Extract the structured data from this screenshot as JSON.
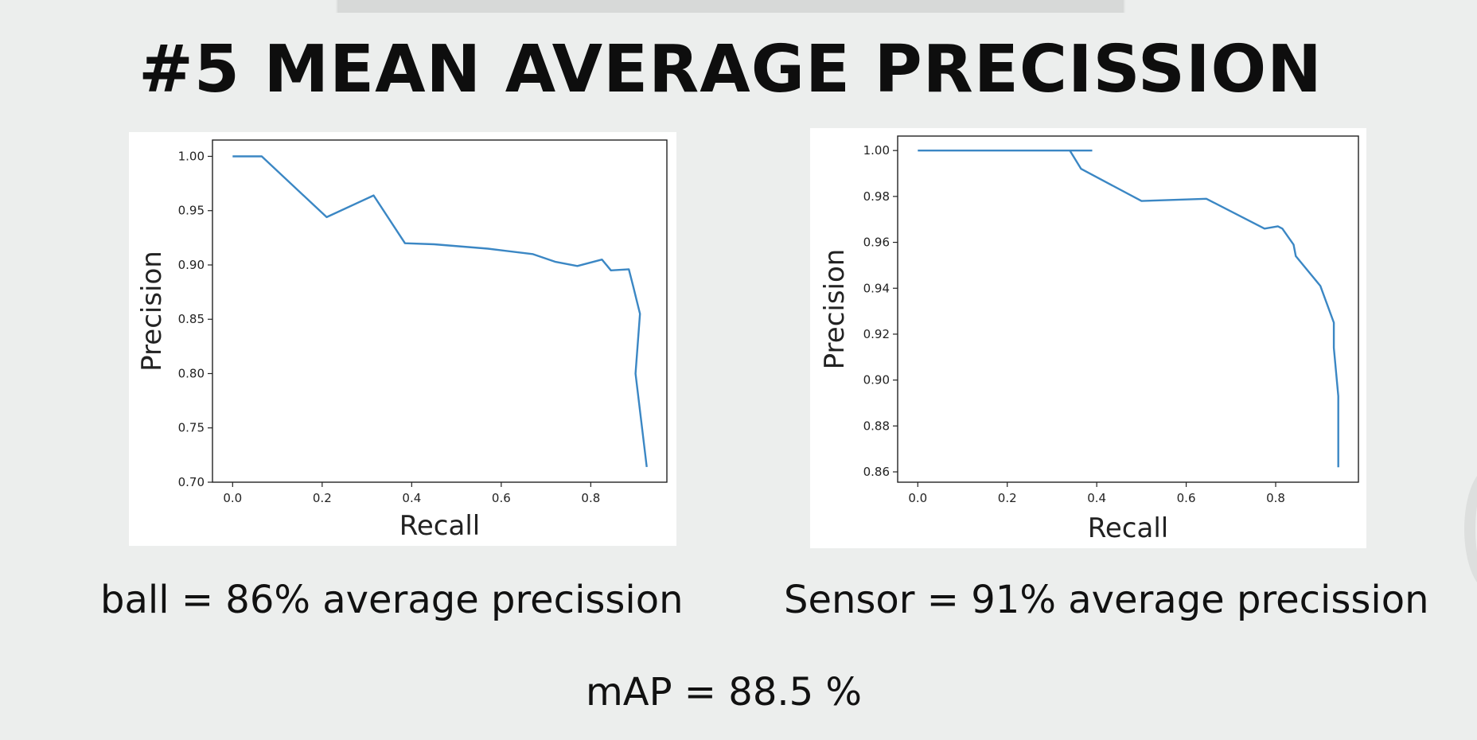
{
  "slide": {
    "title": "#5 MEAN AVERAGE PRECISSION",
    "caption_left": "ball = 86% average precission",
    "caption_right": "Sensor = 91% average precission",
    "caption_map": "mAP = 88.5 %"
  },
  "colors": {
    "line": "#3b87c4",
    "background": "#eceeed",
    "panel": "#ffffff"
  },
  "chart_data": [
    {
      "type": "line",
      "title": "",
      "xlabel": "Recall",
      "ylabel": "Precision",
      "xlim": [
        -0.045,
        0.97
      ],
      "ylim": [
        0.7,
        1.015
      ],
      "xticks": [
        0.0,
        0.2,
        0.4,
        0.6,
        0.8
      ],
      "xtick_labels": [
        "0.0",
        "0.2",
        "0.4",
        "0.6",
        "0.8"
      ],
      "yticks": [
        0.7,
        0.75,
        0.8,
        0.85,
        0.9,
        0.95,
        1.0
      ],
      "ytick_labels": [
        "0.70",
        "0.75",
        "0.80",
        "0.85",
        "0.90",
        "0.95",
        "1.00"
      ],
      "grid": false,
      "series": [
        {
          "x": [
            0.0,
            0.065,
            0.21,
            0.315,
            0.385,
            0.45,
            0.57,
            0.67,
            0.72,
            0.77,
            0.825,
            0.845,
            0.885,
            0.895,
            0.91,
            0.9,
            0.925
          ],
          "y": [
            1.0,
            1.0,
            0.944,
            0.964,
            0.92,
            0.919,
            0.915,
            0.91,
            0.903,
            0.899,
            0.905,
            0.895,
            0.896,
            0.88,
            0.855,
            0.8,
            0.714
          ]
        }
      ]
    },
    {
      "type": "line",
      "title": "",
      "xlabel": "Recall",
      "ylabel": "Precision",
      "xlim": [
        -0.045,
        0.985
      ],
      "ylim": [
        0.8555,
        1.0063
      ],
      "xticks": [
        0.0,
        0.2,
        0.4,
        0.6,
        0.8
      ],
      "xtick_labels": [
        "0.0",
        "0.2",
        "0.4",
        "0.6",
        "0.8"
      ],
      "yticks": [
        0.86,
        0.88,
        0.9,
        0.92,
        0.94,
        0.96,
        0.98,
        1.0
      ],
      "ytick_labels": [
        "0.86",
        "0.88",
        "0.90",
        "0.92",
        "0.94",
        "0.96",
        "0.98",
        "1.00"
      ],
      "grid": false,
      "series": [
        {
          "x": [
            0.0,
            0.39
          ],
          "y": [
            1.0,
            1.0
          ]
        },
        {
          "x": [
            0.34,
            0.365,
            0.5,
            0.645,
            0.775,
            0.805,
            0.815,
            0.84,
            0.845,
            0.9,
            0.93,
            0.93,
            0.94,
            0.94
          ],
          "y": [
            1.0,
            0.992,
            0.978,
            0.979,
            0.966,
            0.967,
            0.966,
            0.959,
            0.954,
            0.941,
            0.925,
            0.914,
            0.893,
            0.862
          ]
        }
      ]
    }
  ]
}
